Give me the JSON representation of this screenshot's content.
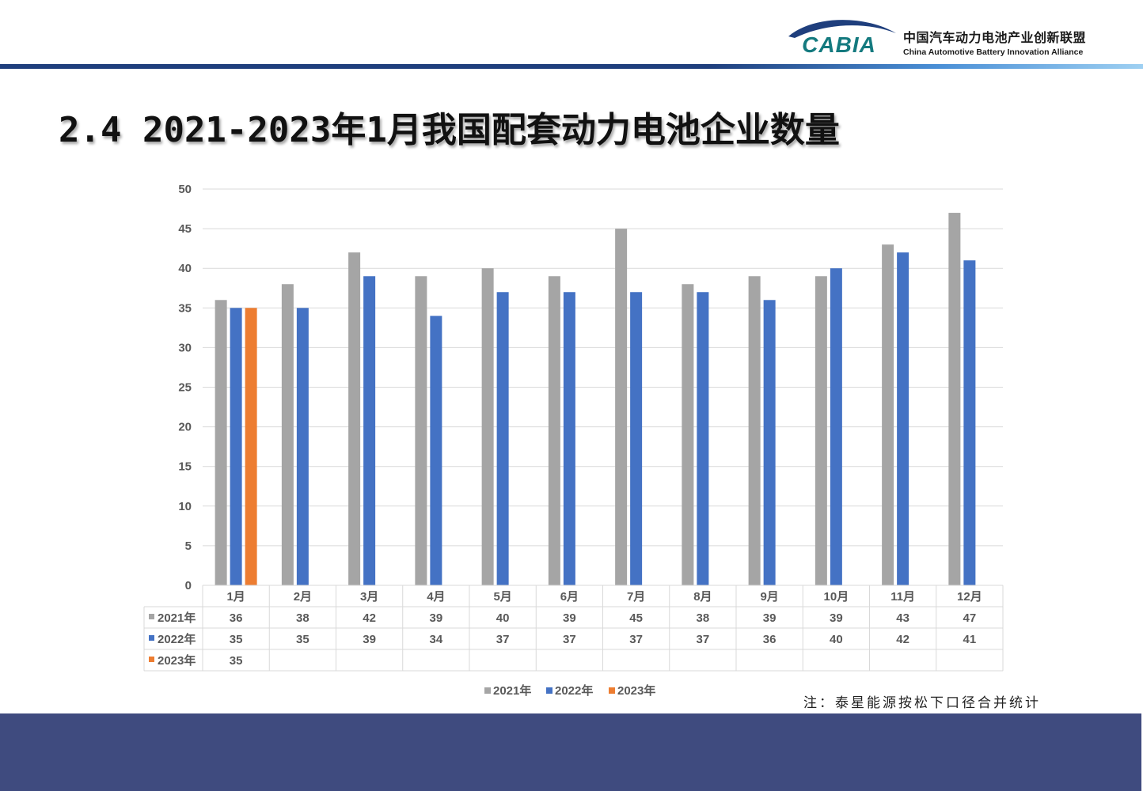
{
  "header": {
    "logo_mark": "CABIA",
    "org_name_cn": "中国汽车动力电池产业创新联盟",
    "org_name_en": "China Automotive Battery Innovation Alliance"
  },
  "slide": {
    "title": "2.4 2021-2023年1月我国配套动力电池企业数量",
    "note": "注：泰星能源按松下口径合并统计"
  },
  "colors": {
    "series_2021": "#a5a5a5",
    "series_2022": "#4472c4",
    "series_2023": "#ed7d31",
    "brand_dark_blue": "#1f3f7d",
    "logo_teal": "#147a7f",
    "footer_band": "#3f4b7f",
    "gridline": "#d9d9d9"
  },
  "chart_data": {
    "type": "bar",
    "title": "",
    "xlabel": "",
    "ylabel": "",
    "ylim": [
      0,
      50
    ],
    "yticks": [
      0,
      5,
      10,
      15,
      20,
      25,
      30,
      35,
      40,
      45,
      50
    ],
    "grid": true,
    "legend_position": "bottom",
    "data_table": true,
    "categories": [
      "1月",
      "2月",
      "3月",
      "4月",
      "5月",
      "6月",
      "7月",
      "8月",
      "9月",
      "10月",
      "11月",
      "12月"
    ],
    "series": [
      {
        "name": "2021年",
        "values": [
          36,
          38,
          42,
          39,
          40,
          39,
          45,
          38,
          39,
          39,
          43,
          47
        ]
      },
      {
        "name": "2022年",
        "values": [
          35,
          35,
          39,
          34,
          37,
          37,
          37,
          37,
          36,
          40,
          42,
          41
        ]
      },
      {
        "name": "2023年",
        "values": [
          35,
          null,
          null,
          null,
          null,
          null,
          null,
          null,
          null,
          null,
          null,
          null
        ]
      }
    ]
  }
}
